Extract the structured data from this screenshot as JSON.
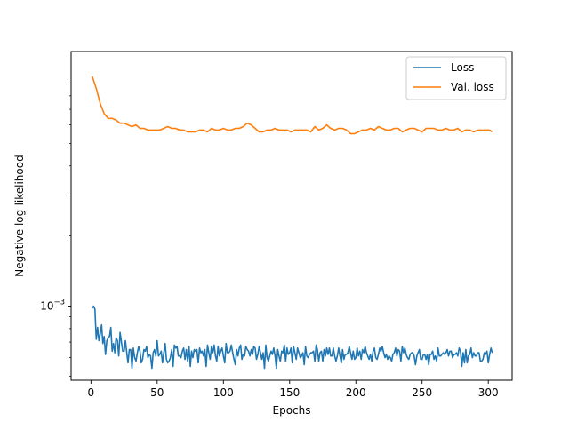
{
  "chart_data": {
    "type": "line",
    "title": "",
    "xlabel": "Epochs",
    "ylabel": "Negative log-likelihood",
    "xlim": [
      -15,
      318
    ],
    "xticks": [
      0,
      50,
      100,
      150,
      200,
      250,
      300
    ],
    "ylog": true,
    "ylim": [
      0.00048,
      0.0124
    ],
    "yticks": [
      {
        "value": 0.001,
        "label_base": "10",
        "label_exp": "−3"
      }
    ],
    "grid": false,
    "legend_position": "top-right",
    "series": [
      {
        "name": "Loss",
        "color": "#1f77b4",
        "x": [
          1,
          2,
          3,
          4,
          5,
          6,
          7,
          8,
          9,
          10,
          11,
          12,
          13,
          14,
          15,
          16,
          17,
          18,
          19,
          20,
          21,
          22,
          23,
          24,
          25,
          26,
          27,
          28,
          29,
          30,
          31,
          32,
          33,
          34,
          35,
          36,
          37,
          38,
          39,
          40,
          41,
          42,
          43,
          44,
          45,
          46,
          47,
          48,
          49,
          50,
          51,
          52,
          53,
          54,
          55,
          56,
          57,
          58,
          59,
          60,
          61,
          62,
          63,
          64,
          65,
          66,
          67,
          68,
          69,
          70,
          71,
          72,
          73,
          74,
          75,
          76,
          77,
          78,
          79,
          80,
          81,
          82,
          83,
          84,
          85,
          86,
          87,
          88,
          89,
          90,
          91,
          92,
          93,
          94,
          95,
          96,
          97,
          98,
          99,
          100,
          101,
          102,
          103,
          104,
          105,
          106,
          107,
          108,
          109,
          110,
          111,
          112,
          113,
          114,
          115,
          116,
          117,
          118,
          119,
          120,
          121,
          122,
          123,
          124,
          125,
          126,
          127,
          128,
          129,
          130,
          131,
          132,
          133,
          134,
          135,
          136,
          137,
          138,
          139,
          140,
          141,
          142,
          143,
          144,
          145,
          146,
          147,
          148,
          149,
          150,
          151,
          152,
          153,
          154,
          155,
          156,
          157,
          158,
          159,
          160,
          161,
          162,
          163,
          164,
          165,
          166,
          167,
          168,
          169,
          170,
          171,
          172,
          173,
          174,
          175,
          176,
          177,
          178,
          179,
          180,
          181,
          182,
          183,
          184,
          185,
          186,
          187,
          188,
          189,
          190,
          191,
          192,
          193,
          194,
          195,
          196,
          197,
          198,
          199,
          200,
          201,
          202,
          203,
          204,
          205,
          206,
          207,
          208,
          209,
          210,
          211,
          212,
          213,
          214,
          215,
          216,
          217,
          218,
          219,
          220,
          221,
          222,
          223,
          224,
          225,
          226,
          227,
          228,
          229,
          230,
          231,
          232,
          233,
          234,
          235,
          236,
          237,
          238,
          239,
          240,
          241,
          242,
          243,
          244,
          245,
          246,
          247,
          248,
          249,
          250,
          251,
          252,
          253,
          254,
          255,
          256,
          257,
          258,
          259,
          260,
          261,
          262,
          263,
          264,
          265,
          266,
          267,
          268,
          269,
          270,
          271,
          272,
          273,
          274,
          275,
          276,
          277,
          278,
          279,
          280,
          281,
          282,
          283,
          284,
          285,
          286,
          287,
          288,
          289,
          290,
          291,
          292,
          293,
          294,
          295,
          296,
          297,
          298,
          299,
          300,
          301,
          302,
          303
        ],
        "values": [
          0.00098,
          0.001,
          0.00097,
          0.00072,
          0.00081,
          0.00071,
          0.00076,
          0.00083,
          0.00069,
          0.00074,
          0.00062,
          0.00071,
          0.00073,
          0.00074,
          0.00081,
          0.00064,
          0.00069,
          0.00063,
          0.00073,
          0.00071,
          0.00061,
          0.00077,
          0.0007,
          0.00064,
          0.00064,
          0.00071,
          0.00063,
          0.00057,
          0.00065,
          0.00065,
          0.00054,
          0.00066,
          0.0006,
          0.00058,
          0.00063,
          0.00067,
          0.00064,
          0.00057,
          0.00059,
          0.00065,
          0.00064,
          0.00067,
          0.0006,
          0.00062,
          0.00061,
          0.00054,
          0.00063,
          0.00065,
          0.00061,
          0.00071,
          0.00061,
          0.00062,
          0.00064,
          0.00057,
          0.00063,
          0.00069,
          0.00059,
          0.00057,
          0.00058,
          0.0006,
          0.00065,
          0.00055,
          0.00068,
          0.00066,
          0.00067,
          0.00061,
          0.00061,
          0.0006,
          0.00064,
          0.00066,
          0.00059,
          0.00065,
          0.00058,
          0.00067,
          0.00055,
          0.00064,
          0.0006,
          0.00065,
          0.00064,
          0.00065,
          0.00057,
          0.00066,
          0.00063,
          0.00064,
          0.00061,
          0.00065,
          0.00055,
          0.00068,
          0.00063,
          0.00059,
          0.00067,
          0.00063,
          0.00068,
          0.00061,
          0.00058,
          0.00067,
          0.00061,
          0.00064,
          0.00066,
          0.00061,
          0.00057,
          0.00069,
          0.00063,
          0.00063,
          0.00064,
          0.00068,
          0.00063,
          0.00059,
          0.00056,
          0.00065,
          0.00061,
          0.00066,
          0.00068,
          0.00059,
          0.00062,
          0.00061,
          0.00067,
          0.00065,
          0.00064,
          0.00061,
          0.00065,
          0.00062,
          0.00067,
          0.00066,
          0.00059,
          0.00062,
          0.00067,
          0.00063,
          0.00059,
          0.00063,
          0.00054,
          0.00068,
          0.0006,
          0.00058,
          0.00061,
          0.00064,
          0.00062,
          0.00066,
          0.00061,
          0.00054,
          0.00065,
          0.00061,
          0.00058,
          0.00064,
          0.00063,
          0.00068,
          0.00058,
          0.00066,
          0.00062,
          0.00063,
          0.00066,
          0.00057,
          0.00067,
          0.00063,
          0.00059,
          0.00066,
          0.00063,
          0.0006,
          0.00061,
          0.00063,
          0.00056,
          0.00067,
          0.00061,
          0.0006,
          0.00062,
          0.00063,
          0.00063,
          0.00064,
          0.00058,
          0.00068,
          0.00065,
          0.00058,
          0.00063,
          0.00064,
          0.00058,
          0.00065,
          0.00061,
          0.00066,
          0.00062,
          0.00066,
          0.00061,
          0.00061,
          0.00066,
          0.00061,
          0.00058,
          0.00061,
          0.00066,
          0.00061,
          0.00057,
          0.00065,
          0.00059,
          0.00062,
          0.00062,
          0.00063,
          0.00067,
          0.00063,
          0.00059,
          0.00064,
          0.00059,
          0.0006,
          0.00066,
          0.00061,
          0.00064,
          0.00059,
          0.00065,
          0.00063,
          0.00067,
          0.00063,
          0.00061,
          0.00059,
          0.00062,
          0.00058,
          0.00064,
          0.00066,
          0.0006,
          0.00059,
          0.00062,
          0.00066,
          0.00064,
          0.00067,
          0.00063,
          0.0006,
          0.00062,
          0.00059,
          0.00061,
          0.0006,
          0.00058,
          0.00062,
          0.00063,
          0.00066,
          0.00061,
          0.00065,
          0.00064,
          0.00058,
          0.00067,
          0.00063,
          0.00066,
          0.00062,
          0.0006,
          0.00059,
          0.00062,
          0.00063,
          0.00063,
          0.00061,
          0.00056,
          0.00061,
          0.00063,
          0.00065,
          0.00059,
          0.00059,
          0.00062,
          0.00062,
          0.00059,
          0.00062,
          0.00056,
          0.00062,
          0.00062,
          0.00064,
          0.00059,
          0.00061,
          0.00058,
          0.00066,
          0.00061,
          0.00061,
          0.00062,
          0.00063,
          0.00062,
          0.00063,
          0.00065,
          0.00061,
          0.00064,
          0.00064,
          0.0006,
          0.00062,
          0.00062,
          0.00063,
          0.00061,
          0.00066,
          0.00064,
          0.00055,
          0.00063,
          0.00057,
          0.00065,
          0.00057,
          0.00061,
          0.00062,
          0.00066,
          0.0006,
          0.00063,
          0.00061,
          0.00061,
          0.00063,
          0.00063,
          0.00058,
          0.00058,
          0.00059,
          0.00063,
          0.00062,
          0.00064,
          0.00057,
          0.00062,
          0.00066,
          0.00063
        ]
      },
      {
        "name": "Val. loss",
        "color": "#ff7f0e",
        "x": [
          1,
          4,
          7,
          10,
          13,
          16,
          19,
          22,
          25,
          28,
          31,
          34,
          37,
          40,
          43,
          46,
          49,
          52,
          55,
          58,
          61,
          64,
          67,
          70,
          73,
          76,
          79,
          82,
          85,
          88,
          91,
          94,
          97,
          100,
          103,
          106,
          109,
          112,
          115,
          118,
          121,
          124,
          127,
          130,
          133,
          136,
          139,
          142,
          145,
          148,
          151,
          154,
          157,
          160,
          163,
          166,
          169,
          172,
          175,
          178,
          181,
          184,
          187,
          190,
          193,
          196,
          199,
          202,
          205,
          208,
          211,
          214,
          217,
          220,
          223,
          226,
          229,
          232,
          235,
          238,
          241,
          244,
          247,
          250,
          253,
          256,
          259,
          262,
          265,
          268,
          271,
          274,
          277,
          280,
          283,
          286,
          289,
          292,
          295,
          298,
          301,
          303
        ],
        "values": [
          0.0097,
          0.0086,
          0.0074,
          0.0067,
          0.0064,
          0.0064,
          0.0063,
          0.0061,
          0.0061,
          0.006,
          0.0059,
          0.006,
          0.0058,
          0.0058,
          0.0057,
          0.0057,
          0.0057,
          0.0057,
          0.0058,
          0.0059,
          0.0058,
          0.0058,
          0.0057,
          0.0057,
          0.0056,
          0.0056,
          0.0056,
          0.0057,
          0.0057,
          0.0056,
          0.0058,
          0.0057,
          0.0057,
          0.0058,
          0.0057,
          0.0057,
          0.0058,
          0.0058,
          0.0059,
          0.0061,
          0.006,
          0.0058,
          0.0056,
          0.0056,
          0.0057,
          0.0057,
          0.0058,
          0.0057,
          0.0057,
          0.0057,
          0.0056,
          0.0057,
          0.0057,
          0.0057,
          0.0057,
          0.0056,
          0.0059,
          0.0057,
          0.0058,
          0.006,
          0.0058,
          0.0057,
          0.0058,
          0.0058,
          0.0057,
          0.0055,
          0.0055,
          0.0056,
          0.0057,
          0.0057,
          0.0058,
          0.0057,
          0.0059,
          0.0058,
          0.0057,
          0.0057,
          0.0058,
          0.0058,
          0.0056,
          0.0057,
          0.0058,
          0.0058,
          0.0057,
          0.0056,
          0.0058,
          0.0058,
          0.0058,
          0.0057,
          0.0057,
          0.0058,
          0.0057,
          0.0057,
          0.0058,
          0.0056,
          0.0057,
          0.0057,
          0.0056,
          0.0057,
          0.0057,
          0.0057,
          0.0057,
          0.0056
        ]
      }
    ]
  }
}
